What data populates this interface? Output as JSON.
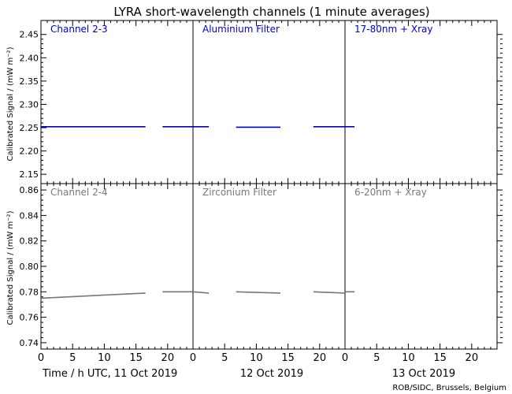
{
  "chart_data": {
    "type": "line",
    "title": "LYRA short-wavelength channels (1 minute averages)",
    "credit": "ROB/SIDC, Brussels, Belgium",
    "ylabel": "Calibrated Signal / (mW m⁻²)",
    "x_axis": {
      "label": "Time / h UTC, 11 Oct 2019",
      "day_labels": [
        "Time / h UTC, 11 Oct 2019",
        "12 Oct 2019",
        "13 Oct 2019"
      ],
      "tick_labels": [
        "0",
        "5",
        "10",
        "15",
        "20"
      ],
      "range_hours_per_day": [
        0,
        24
      ]
    },
    "panels": [
      {
        "row": "top",
        "ylim": [
          2.13,
          2.48
        ],
        "yticks": [
          "2.15",
          "2.20",
          "2.25",
          "2.30",
          "2.35",
          "2.40",
          "2.45"
        ],
        "color": "#0000cc",
        "channels": [
          "Channel 2-3",
          "Aluminium Filter",
          "17-80nm + Xray"
        ],
        "series": [
          {
            "name": "Aluminium Filter",
            "segments": [
              {
                "x": [
                  0,
                  16.5
                ],
                "y": [
                  2.252,
                  2.252
                ]
              },
              {
                "x": [
                  19.2,
                  24
                ],
                "y": [
                  2.252,
                  2.252
                ]
              },
              {
                "x": [
                  24,
                  26.5
                ],
                "y": [
                  2.252,
                  2.252
                ]
              },
              {
                "x": [
                  30.8,
                  37.8
                ],
                "y": [
                  2.251,
                  2.251
                ]
              },
              {
                "x": [
                  43.0,
                  48
                ],
                "y": [
                  2.252,
                  2.252
                ]
              },
              {
                "x": [
                  48,
                  49.5
                ],
                "y": [
                  2.252,
                  2.252
                ]
              }
            ]
          }
        ]
      },
      {
        "row": "bottom",
        "ylim": [
          0.735,
          0.865
        ],
        "yticks": [
          "0.74",
          "0.76",
          "0.78",
          "0.80",
          "0.82",
          "0.84",
          "0.86"
        ],
        "color": "#777777",
        "channels": [
          "Channel 2-4",
          "Zirconium Filter",
          "6-20nm + Xray"
        ],
        "series": [
          {
            "name": "Zirconium Filter",
            "segments": [
              {
                "x": [
                  0,
                  16.5
                ],
                "y": [
                  0.775,
                  0.779
                ]
              },
              {
                "x": [
                  19.2,
                  24
                ],
                "y": [
                  0.78,
                  0.78
                ]
              },
              {
                "x": [
                  24,
                  26.5
                ],
                "y": [
                  0.78,
                  0.779
                ]
              },
              {
                "x": [
                  30.8,
                  37.8
                ],
                "y": [
                  0.78,
                  0.779
                ]
              },
              {
                "x": [
                  43.0,
                  48
                ],
                "y": [
                  0.78,
                  0.779
                ]
              },
              {
                "x": [
                  48,
                  49.5
                ],
                "y": [
                  0.78,
                  0.78
                ]
              }
            ]
          }
        ]
      }
    ]
  }
}
